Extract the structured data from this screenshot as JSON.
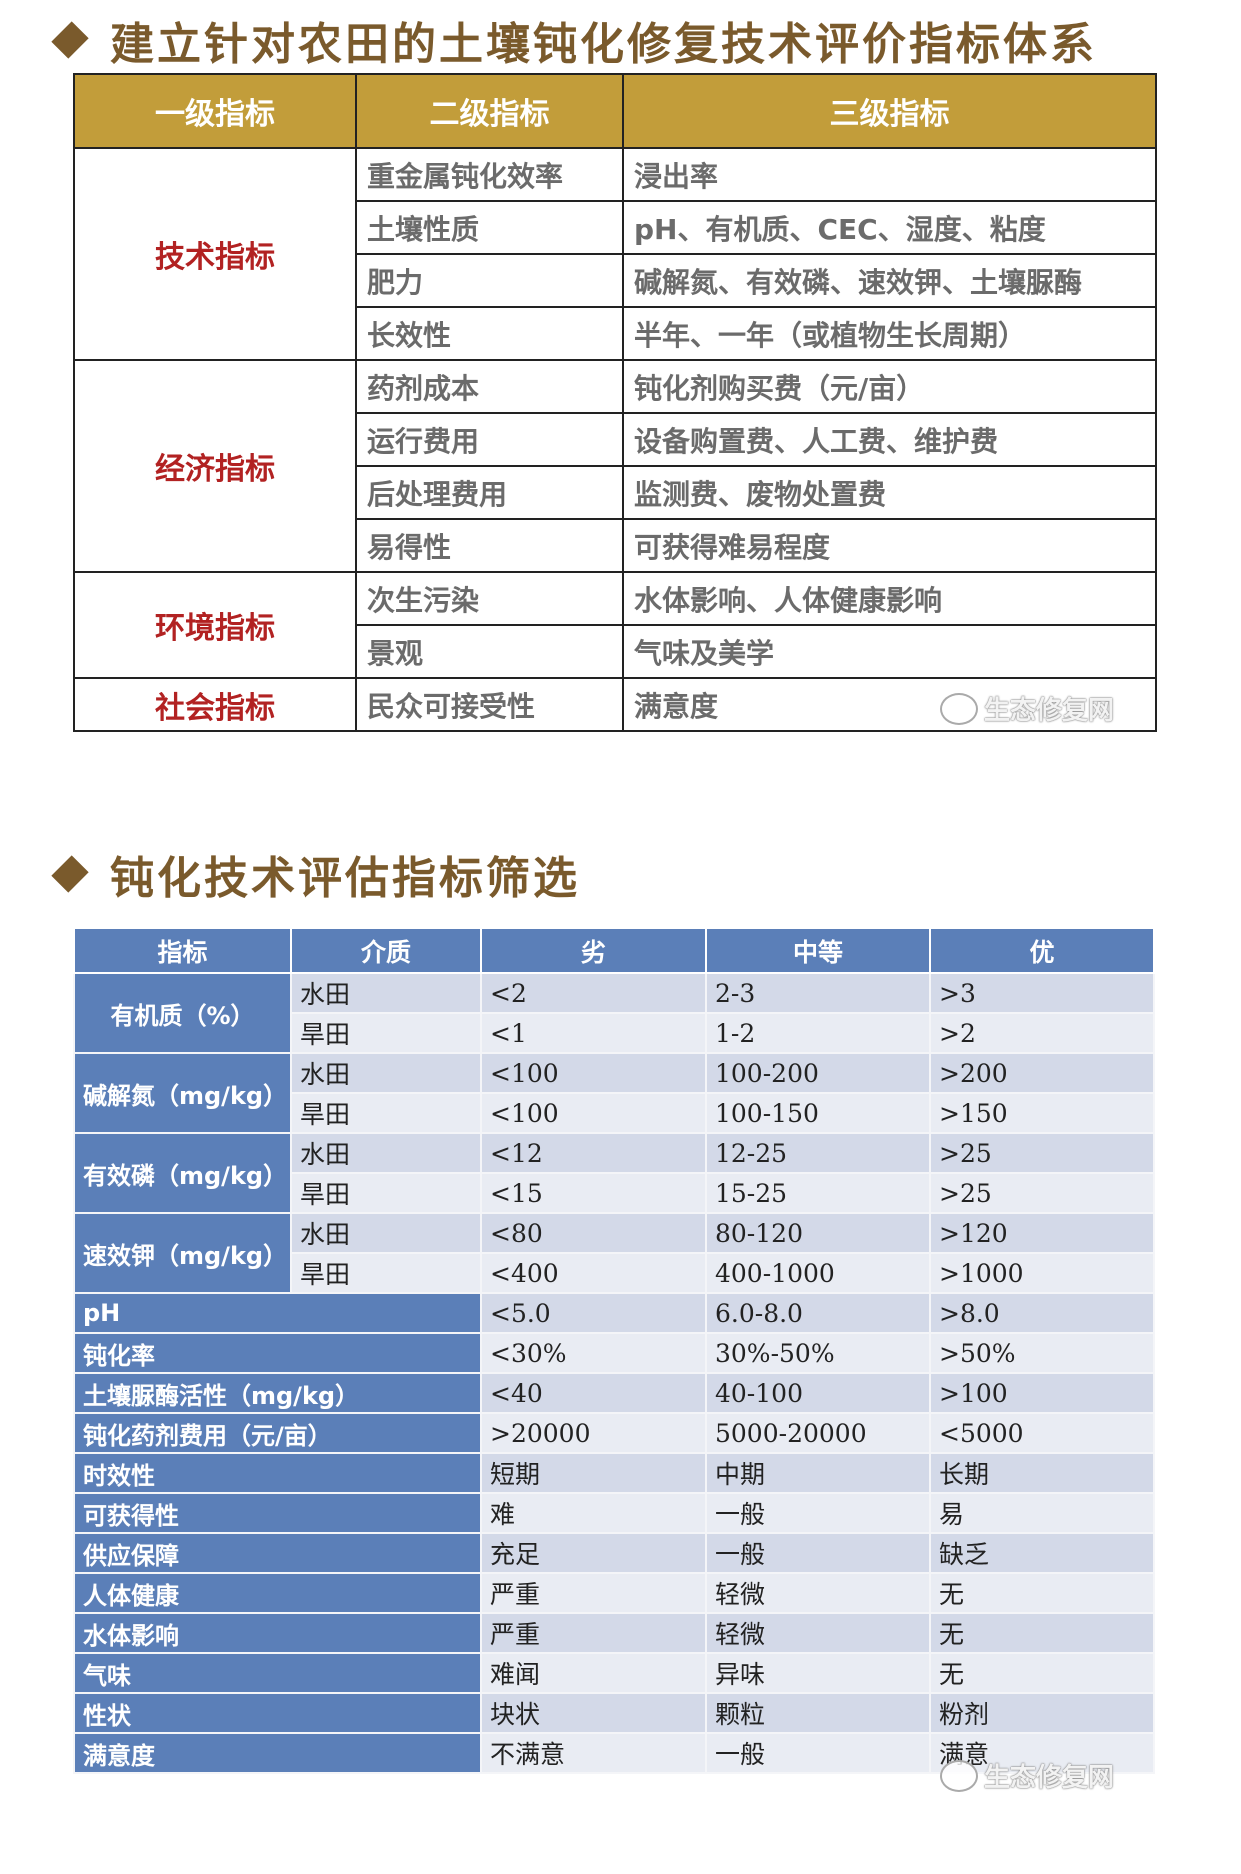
{
  "section1": {
    "title": "建立针对农田的土壤钝化修复技术评价指标体系",
    "headers": [
      "一级指标",
      "二级指标",
      "三级指标"
    ],
    "groups": [
      {
        "level1": "技术指标",
        "rows": [
          {
            "level2": "重金属钝化效率",
            "level3": "浸出率"
          },
          {
            "level2": "土壤性质",
            "level3": "pH、有机质、CEC、湿度、粘度"
          },
          {
            "level2": "肥力",
            "level3": "碱解氮、有效磷、速效钾、土壤脲酶"
          },
          {
            "level2": "长效性",
            "level3": "半年、一年（或植物生长周期）"
          }
        ]
      },
      {
        "level1": "经济指标",
        "rows": [
          {
            "level2": "药剂成本",
            "level3": "钝化剂购买费（元/亩）"
          },
          {
            "level2": "运行费用",
            "level3": "设备购置费、人工费、维护费"
          },
          {
            "level2": "后处理费用",
            "level3": "监测费、废物处置费"
          },
          {
            "level2": "易得性",
            "level3": "可获得难易程度"
          }
        ]
      },
      {
        "level1": "环境指标",
        "rows": [
          {
            "level2": "次生污染",
            "level3": "水体影响、人体健康影响"
          },
          {
            "level2": "景观",
            "level3": "气味及美学"
          }
        ]
      },
      {
        "level1": "社会指标",
        "rows": [
          {
            "level2": "民众可接受性",
            "level3": "满意度"
          }
        ]
      }
    ],
    "watermark": "生态修复网"
  },
  "section2": {
    "title": "钝化技术评估指标筛选",
    "headers": [
      "指标",
      "介质",
      "劣",
      "中等",
      "优"
    ],
    "grouped": [
      {
        "indicator": "有机质（%）",
        "rows": [
          {
            "medium": "水田",
            "poor": "<2",
            "medium_grade": "2-3",
            "good": ">3"
          },
          {
            "medium": "旱田",
            "poor": "<1",
            "medium_grade": "1-2",
            "good": ">2"
          }
        ]
      },
      {
        "indicator": "碱解氮（mg/kg）",
        "rows": [
          {
            "medium": "水田",
            "poor": "<100",
            "medium_grade": "100-200",
            "good": ">200"
          },
          {
            "medium": "旱田",
            "poor": "<100",
            "medium_grade": "100-150",
            "good": ">150"
          }
        ]
      },
      {
        "indicator": "有效磷（mg/kg）",
        "rows": [
          {
            "medium": "水田",
            "poor": "<12",
            "medium_grade": "12-25",
            "good": ">25"
          },
          {
            "medium": "旱田",
            "poor": "<15",
            "medium_grade": "15-25",
            "good": ">25"
          }
        ]
      },
      {
        "indicator": "速效钾（mg/kg）",
        "rows": [
          {
            "medium": "水田",
            "poor": "<80",
            "medium_grade": "80-120",
            "good": ">120"
          },
          {
            "medium": "旱田",
            "poor": "<400",
            "medium_grade": "400-1000",
            "good": ">1000"
          }
        ]
      }
    ],
    "single": [
      {
        "indicator": "pH",
        "poor": "<5.0",
        "medium_grade": "6.0-8.0",
        "good": ">8.0"
      },
      {
        "indicator": "钝化率",
        "poor": "<30%",
        "medium_grade": "30%-50%",
        "good": ">50%"
      },
      {
        "indicator": "土壤脲酶活性（mg/kg）",
        "poor": "<40",
        "medium_grade": "40-100",
        "good": ">100"
      },
      {
        "indicator": "钝化药剂费用（元/亩）",
        "poor": ">20000",
        "medium_grade": "5000-20000",
        "good": "<5000"
      },
      {
        "indicator": "时效性",
        "poor": "短期",
        "medium_grade": "中期",
        "good": "长期"
      },
      {
        "indicator": "可获得性",
        "poor": "难",
        "medium_grade": "一般",
        "good": "易"
      },
      {
        "indicator": "供应保障",
        "poor": "充足",
        "medium_grade": "一般",
        "good": "缺乏"
      },
      {
        "indicator": "人体健康",
        "poor": "严重",
        "medium_grade": "轻微",
        "good": "无"
      },
      {
        "indicator": "水体影响",
        "poor": "严重",
        "medium_grade": "轻微",
        "good": "无"
      },
      {
        "indicator": "气味",
        "poor": "难闻",
        "medium_grade": "异味",
        "good": "无"
      },
      {
        "indicator": "性状",
        "poor": "块状",
        "medium_grade": "颗粒",
        "good": "粉剂"
      },
      {
        "indicator": "满意度",
        "poor": "不满意",
        "medium_grade": "一般",
        "good": "满意"
      }
    ],
    "watermark": "生态修复网"
  },
  "colors": {
    "title": "#7a5a2c",
    "gold_header": "#c29d3a",
    "level1_red": "#b22222",
    "blue_header": "#5b7fb8",
    "row_dark": "#d3d9e8",
    "row_light": "#e9ecf3"
  }
}
